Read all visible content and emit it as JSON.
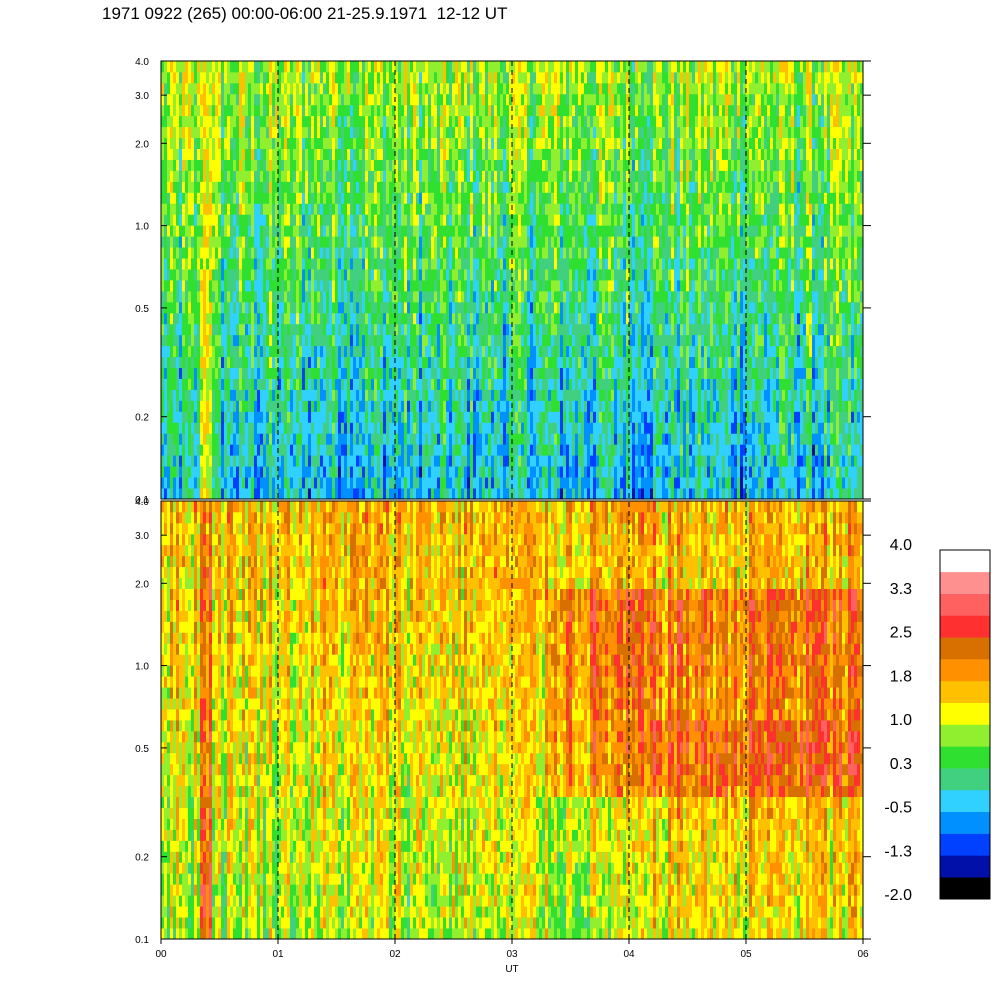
{
  "title": "1971 0922 (265) 00:00-06:00 21-25.9.1971  12-12 UT",
  "chart_data": {
    "type": "heatmap",
    "panels": [
      {
        "name": "",
        "x_range": [
          "00",
          "06"
        ],
        "y_scale": "log",
        "y_range": [
          0.1,
          4.0
        ],
        "y_ticks": [
          "0.1",
          "0.2",
          "0.5",
          "1.0",
          "2.0",
          "3.0",
          "4.0"
        ],
        "dominant_value_range": [
          -0.5,
          1.0
        ]
      },
      {
        "name": "",
        "x_range": [
          "00",
          "06"
        ],
        "y_scale": "log",
        "y_range": [
          0.1,
          4.0
        ],
        "y_ticks": [
          "0.1",
          "0.2",
          "0.5",
          "1.0",
          "2.0",
          "3.0",
          "4.0"
        ],
        "dominant_value_range": [
          0.3,
          2.5
        ]
      }
    ],
    "x_ticks": [
      "00",
      "01",
      "02",
      "03",
      "04",
      "05",
      "06"
    ],
    "xlabel": "UT",
    "colorbar": {
      "labels": [
        "4.0",
        "3.3",
        "2.5",
        "1.8",
        "1.0",
        "0.3",
        "-0.5",
        "-1.3",
        "-2.0"
      ],
      "range": [
        -2.0,
        4.0
      ],
      "colors": [
        "#000000",
        "#0010a8",
        "#0040ff",
        "#0090ff",
        "#30d0ff",
        "#40d080",
        "#30e030",
        "#90f030",
        "#ffff00",
        "#ffc000",
        "#ff9000",
        "#d87000",
        "#ff3030",
        "#ff6060",
        "#ff9090",
        "#ffffff"
      ]
    },
    "grid": "dashed vertical lines at each hour"
  }
}
